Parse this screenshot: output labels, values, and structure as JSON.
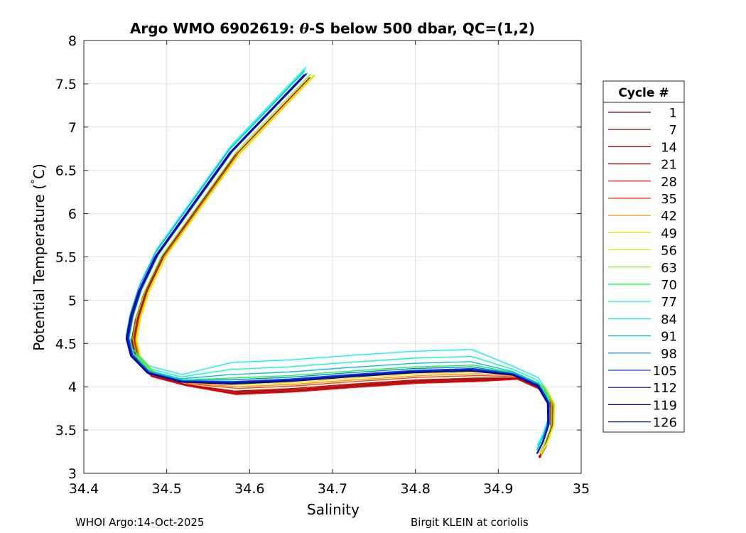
{
  "chart_data": {
    "type": "line",
    "title_prefix": "Argo WMO 6902619: ",
    "title_theta": "θ",
    "title_suffix": "-S below 500 dbar,  QC=(1,2)",
    "xlabel": "Salinity",
    "ylabel_prefix": "Potential Temperature (",
    "ylabel_degree": "°",
    "ylabel_suffix": "C)",
    "xlim": [
      34.4,
      35.0
    ],
    "ylim": [
      3.0,
      8.0
    ],
    "xticks": [
      34.4,
      34.5,
      34.6,
      34.7,
      34.8,
      34.9,
      35.0
    ],
    "xtick_labels": [
      "34.4",
      "34.5",
      "34.6",
      "34.7",
      "34.8",
      "34.9",
      "35"
    ],
    "yticks": [
      3.0,
      3.5,
      4.0,
      4.5,
      5.0,
      5.5,
      6.0,
      6.5,
      7.0,
      7.5,
      8.0
    ],
    "ytick_labels": [
      "3",
      "3.5",
      "4",
      "4.5",
      "5",
      "5.5",
      "6",
      "6.5",
      "7",
      "7.5",
      "8"
    ],
    "grid": true,
    "legend_title": "Cycle #",
    "legend_position": "right",
    "base_profile": {
      "salinity": [
        34.67,
        34.62,
        34.58,
        34.55,
        34.52,
        34.49,
        34.47,
        34.46,
        34.455,
        34.46,
        34.48,
        34.52,
        34.58,
        34.65,
        34.72,
        34.8,
        34.87,
        34.92,
        34.95,
        34.962,
        34.962,
        34.955,
        34.948
      ],
      "temperature": [
        7.6,
        7.1,
        6.7,
        6.3,
        5.9,
        5.5,
        5.1,
        4.8,
        4.55,
        4.35,
        4.15,
        4.05,
        4.02,
        4.05,
        4.1,
        4.15,
        4.17,
        4.13,
        4.0,
        3.8,
        3.55,
        3.35,
        3.22
      ]
    },
    "series": [
      {
        "name": "1",
        "color": "#800000",
        "s_offset": 0.004,
        "t_offset": -0.1
      },
      {
        "name": "7",
        "color": "#9b0000",
        "s_offset": 0.006,
        "t_offset": -0.08
      },
      {
        "name": "14",
        "color": "#b80000",
        "s_offset": 0.003,
        "t_offset": -0.07
      },
      {
        "name": "21",
        "color": "#d40000",
        "s_offset": 0.002,
        "t_offset": -0.09
      },
      {
        "name": "28",
        "color": "#f00000",
        "s_offset": 0.005,
        "t_offset": -0.11
      },
      {
        "name": "35",
        "color": "#ff3c00",
        "s_offset": 0.007,
        "t_offset": -0.04
      },
      {
        "name": "42",
        "color": "#ff9000",
        "s_offset": 0.008,
        "t_offset": -0.02
      },
      {
        "name": "49",
        "color": "#ffe000",
        "s_offset": 0.009,
        "t_offset": 0.0
      },
      {
        "name": "56",
        "color": "#c8ff00",
        "s_offset": 0.008,
        "t_offset": 0.02
      },
      {
        "name": "63",
        "color": "#64ff00",
        "s_offset": 0.004,
        "t_offset": 0.04
      },
      {
        "name": "70",
        "color": "#00ff32",
        "s_offset": 0.0,
        "t_offset": 0.08
      },
      {
        "name": "77",
        "color": "#00ffb4",
        "s_offset": -0.003,
        "t_offset": 0.18
      },
      {
        "name": "84",
        "color": "#00f0ff",
        "s_offset": -0.002,
        "t_offset": 0.26
      },
      {
        "name": "91",
        "color": "#00b4e6",
        "s_offset": -0.004,
        "t_offset": 0.12
      },
      {
        "name": "98",
        "color": "#0078dc",
        "s_offset": -0.002,
        "t_offset": 0.06
      },
      {
        "name": "105",
        "color": "#0040ff",
        "s_offset": -0.001,
        "t_offset": 0.04
      },
      {
        "name": "112",
        "color": "#00007a",
        "s_offset": -0.003,
        "t_offset": 0.01
      },
      {
        "name": "119",
        "color": "#000096",
        "s_offset": -0.004,
        "t_offset": 0.02
      },
      {
        "name": "126",
        "color": "#0010c8",
        "s_offset": -0.002,
        "t_offset": 0.03
      }
    ]
  },
  "footer": {
    "left": "WHOI Argo:14-Oct-2025",
    "right": "Birgit KLEIN at coriolis"
  }
}
